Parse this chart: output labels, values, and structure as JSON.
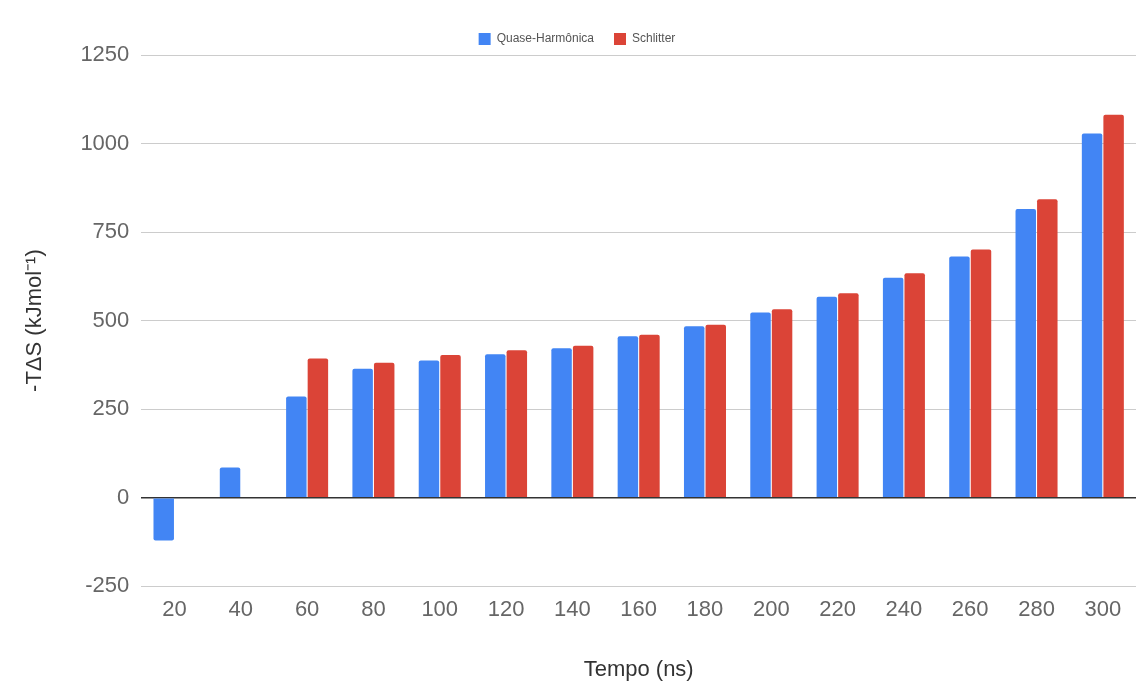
{
  "chart_data": {
    "type": "bar",
    "xlabel": "Tempo (ns)",
    "ylabel": "-TΔS (kJmol⁻¹)",
    "categories": [
      "20",
      "40",
      "60",
      "80",
      "100",
      "120",
      "140",
      "160",
      "180",
      "200",
      "220",
      "240",
      "260",
      "280",
      "300"
    ],
    "series": [
      {
        "name": "Quase-Harmônica",
        "color": "#4285f4",
        "values": [
          -121,
          85,
          286,
          364,
          387,
          405,
          422,
          456,
          484,
          523,
          567,
          621,
          681,
          815,
          1028
        ]
      },
      {
        "name": "Schlitter",
        "color": "#db4437",
        "values": [
          null,
          null,
          393,
          381,
          403,
          416,
          429,
          460,
          488,
          532,
          577,
          634,
          701,
          843,
          1081
        ]
      }
    ],
    "ylim": [
      -250,
      1250
    ],
    "yticks": [
      -250,
      0,
      250,
      500,
      750,
      1000,
      1250
    ],
    "grid": "y",
    "legend": "top"
  }
}
